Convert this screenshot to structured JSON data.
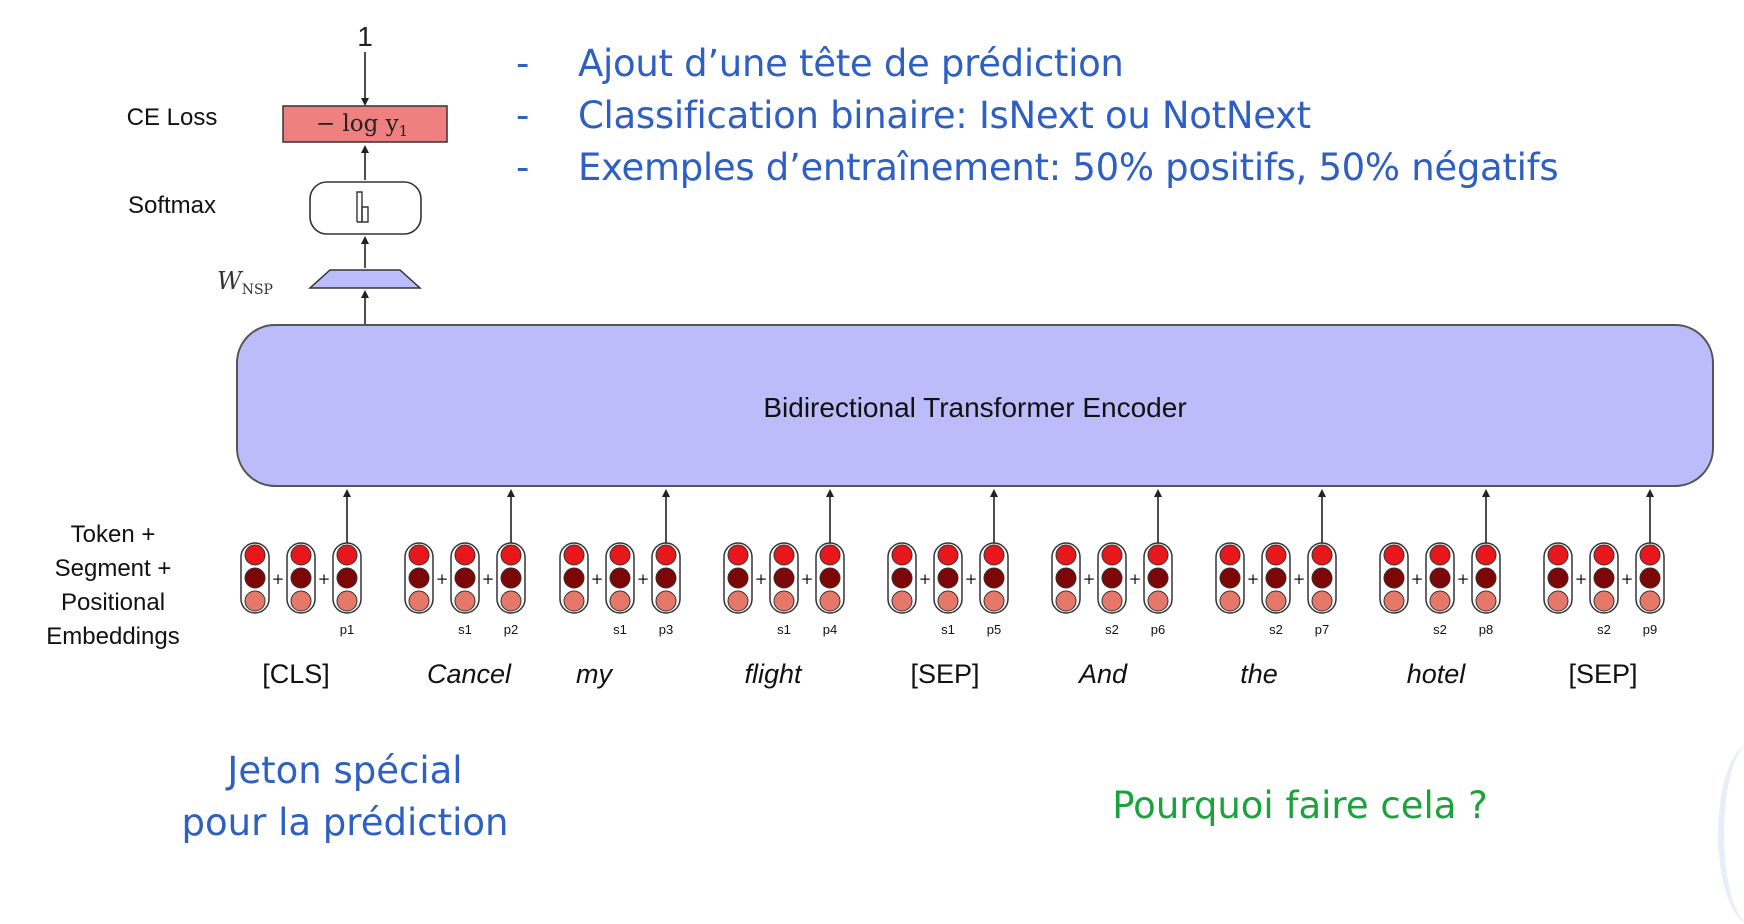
{
  "diagram": {
    "input_label": "1",
    "ce_loss_label": "CE Loss",
    "loss_formula": "− log y",
    "loss_subscript": "1",
    "softmax_label": "Softmax",
    "wnsp_main": "W",
    "wnsp_sub": "NSP",
    "encoder_label": "Bidirectional Transformer Encoder",
    "embeddings_label": [
      "Token +",
      "Segment +",
      "Positional",
      "Embeddings"
    ],
    "tokens": [
      {
        "word": "[CLS]",
        "italic": false,
        "seg": "",
        "pos": "p1"
      },
      {
        "word": "Cancel",
        "italic": true,
        "seg": "s1",
        "pos": "p2"
      },
      {
        "word": "my",
        "italic": true,
        "seg": "s1",
        "pos": "p3"
      },
      {
        "word": "flight",
        "italic": true,
        "seg": "s1",
        "pos": "p4"
      },
      {
        "word": "[SEP]",
        "italic": false,
        "seg": "s1",
        "pos": "p5"
      },
      {
        "word": "And",
        "italic": true,
        "seg": "s2",
        "pos": "p6"
      },
      {
        "word": "the",
        "italic": true,
        "seg": "s2",
        "pos": "p7"
      },
      {
        "word": "hotel",
        "italic": true,
        "seg": "s2",
        "pos": "p8"
      },
      {
        "word": "[SEP]",
        "italic": false,
        "seg": "s2",
        "pos": "p9"
      }
    ],
    "first_segment_label": "s1",
    "plus": "+"
  },
  "bullets": [
    {
      "dash": "-",
      "text": "Ajout d’une tête de prédiction"
    },
    {
      "dash": "-",
      "text": "Classification binaire: IsNext ou NotNext"
    },
    {
      "dash": "-",
      "text": "Exemples d’entraînement: 50% positifs, 50% négatifs"
    }
  ],
  "notes": {
    "special_token": [
      "Jeton spécial",
      "pour la prédiction"
    ],
    "question": "Pourquoi faire cela ?"
  },
  "colors": {
    "blue_text": "#2e5fc4",
    "green_text": "#1aa33a",
    "encoder_fill": "#bcbcfb",
    "loss_fill": "#f08080",
    "wnsp_fill": "#bcbcfb",
    "dot_top": "#e8171b",
    "dot_mid": "#7d0707",
    "dot_bottom": "#e6786a"
  }
}
